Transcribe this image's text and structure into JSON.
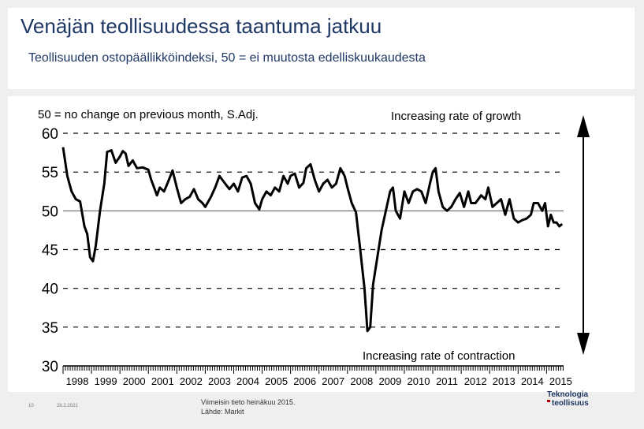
{
  "header": {
    "title": "Venäjän teollisuudessa taantuma jatkuu",
    "subtitle": "Teollisuuden ostopäällikköindeksi, 50 = ei muutosta edelliskuukaudesta"
  },
  "footer": {
    "page_number": "10",
    "date": "28.2.2021",
    "source_line1": "Viimeisin tieto heinäkuu 2015.",
    "source_line2": "Lähde: Markit"
  },
  "logo": {
    "line1": "Teknologia",
    "line2": "teollisuus"
  },
  "colors": {
    "accent": "#1f3864",
    "line": "#000000",
    "logo_red": "#c00000"
  },
  "chart_data": {
    "type": "line",
    "note": "50 = no change on previous month, S.Adj.",
    "top_annotation": "Increasing rate of growth",
    "bottom_annotation": "Increasing rate of contraction",
    "yticks": [
      "60",
      "55",
      "50",
      "45",
      "40",
      "35",
      "30"
    ],
    "ylim": [
      30,
      60
    ],
    "xticks": [
      "1998",
      "1999",
      "2000",
      "2001",
      "2002",
      "2003",
      "2004",
      "2005",
      "2006",
      "2007",
      "2008",
      "2009",
      "2010",
      "2011",
      "2012",
      "2013",
      "2014",
      "2015"
    ],
    "xlim": [
      1998,
      2015.6
    ],
    "grid": "dashed horizontal",
    "series": [
      {
        "values": [
          [
            1998.0,
            58.2
          ],
          [
            1998.15,
            54.5
          ],
          [
            1998.3,
            52.5
          ],
          [
            1998.45,
            51.5
          ],
          [
            1998.6,
            51.2
          ],
          [
            1998.75,
            48.0
          ],
          [
            1998.85,
            47.0
          ],
          [
            1998.95,
            44.0
          ],
          [
            1999.05,
            43.5
          ],
          [
            1999.15,
            45.5
          ],
          [
            1999.3,
            50.0
          ],
          [
            1999.45,
            53.5
          ],
          [
            1999.55,
            57.6
          ],
          [
            1999.7,
            57.8
          ],
          [
            1999.85,
            56.2
          ],
          [
            2000.0,
            57.0
          ],
          [
            2000.1,
            57.7
          ],
          [
            2000.2,
            57.4
          ],
          [
            2000.3,
            55.8
          ],
          [
            2000.45,
            56.5
          ],
          [
            2000.6,
            55.5
          ],
          [
            2000.8,
            55.6
          ],
          [
            2001.0,
            55.3
          ],
          [
            2001.1,
            54.0
          ],
          [
            2001.2,
            53.0
          ],
          [
            2001.3,
            52.0
          ],
          [
            2001.4,
            53.0
          ],
          [
            2001.55,
            52.5
          ],
          [
            2001.7,
            53.8
          ],
          [
            2001.85,
            55.2
          ],
          [
            2002.0,
            53.0
          ],
          [
            2002.15,
            51.0
          ],
          [
            2002.3,
            51.5
          ],
          [
            2002.45,
            51.8
          ],
          [
            2002.6,
            52.8
          ],
          [
            2002.75,
            51.5
          ],
          [
            2002.9,
            51.0
          ],
          [
            2003.0,
            50.5
          ],
          [
            2003.2,
            51.8
          ],
          [
            2003.35,
            53.0
          ],
          [
            2003.5,
            54.5
          ],
          [
            2003.7,
            53.5
          ],
          [
            2003.85,
            52.8
          ],
          [
            2004.0,
            53.5
          ],
          [
            2004.15,
            52.5
          ],
          [
            2004.3,
            54.3
          ],
          [
            2004.45,
            54.5
          ],
          [
            2004.6,
            53.5
          ],
          [
            2004.75,
            51.0
          ],
          [
            2004.9,
            50.2
          ],
          [
            2005.0,
            51.5
          ],
          [
            2005.15,
            52.5
          ],
          [
            2005.3,
            52.0
          ],
          [
            2005.45,
            53.0
          ],
          [
            2005.6,
            52.5
          ],
          [
            2005.75,
            54.5
          ],
          [
            2005.9,
            53.5
          ],
          [
            2006.0,
            54.5
          ],
          [
            2006.15,
            54.8
          ],
          [
            2006.3,
            53.0
          ],
          [
            2006.45,
            53.6
          ],
          [
            2006.55,
            55.5
          ],
          [
            2006.7,
            56.0
          ],
          [
            2006.85,
            54.0
          ],
          [
            2007.0,
            52.5
          ],
          [
            2007.15,
            53.5
          ],
          [
            2007.3,
            54.0
          ],
          [
            2007.45,
            53.0
          ],
          [
            2007.6,
            53.5
          ],
          [
            2007.75,
            55.5
          ],
          [
            2007.9,
            54.5
          ],
          [
            2008.0,
            53.0
          ],
          [
            2008.15,
            51.0
          ],
          [
            2008.3,
            49.8
          ],
          [
            2008.45,
            45.0
          ],
          [
            2008.6,
            40.0
          ],
          [
            2008.7,
            34.5
          ],
          [
            2008.8,
            35.0
          ],
          [
            2008.9,
            40.5
          ],
          [
            2009.05,
            44.0
          ],
          [
            2009.2,
            47.5
          ],
          [
            2009.35,
            50.0
          ],
          [
            2009.5,
            52.5
          ],
          [
            2009.6,
            53.0
          ],
          [
            2009.7,
            50.0
          ],
          [
            2009.85,
            49.0
          ],
          [
            2010.0,
            52.5
          ],
          [
            2010.15,
            51.0
          ],
          [
            2010.3,
            52.5
          ],
          [
            2010.45,
            52.8
          ],
          [
            2010.6,
            52.5
          ],
          [
            2010.75,
            51.0
          ],
          [
            2010.9,
            53.5
          ],
          [
            2011.0,
            55.0
          ],
          [
            2011.1,
            55.5
          ],
          [
            2011.2,
            52.5
          ],
          [
            2011.35,
            50.5
          ],
          [
            2011.5,
            50.0
          ],
          [
            2011.65,
            50.5
          ],
          [
            2011.8,
            51.5
          ],
          [
            2011.95,
            52.3
          ],
          [
            2012.1,
            50.5
          ],
          [
            2012.25,
            52.5
          ],
          [
            2012.35,
            51.0
          ],
          [
            2012.5,
            51.0
          ],
          [
            2012.7,
            52.0
          ],
          [
            2012.85,
            51.5
          ],
          [
            2012.95,
            53.0
          ],
          [
            2013.1,
            50.5
          ],
          [
            2013.25,
            51.0
          ],
          [
            2013.4,
            51.5
          ],
          [
            2013.55,
            49.5
          ],
          [
            2013.7,
            51.5
          ],
          [
            2013.85,
            49.0
          ],
          [
            2014.0,
            48.5
          ],
          [
            2014.15,
            48.8
          ],
          [
            2014.3,
            49.0
          ],
          [
            2014.45,
            49.5
          ],
          [
            2014.55,
            51.0
          ],
          [
            2014.7,
            51.0
          ],
          [
            2014.85,
            50.0
          ],
          [
            2014.95,
            51.0
          ],
          [
            2015.05,
            48.0
          ],
          [
            2015.15,
            49.5
          ],
          [
            2015.25,
            48.5
          ],
          [
            2015.35,
            48.5
          ],
          [
            2015.45,
            48.0
          ],
          [
            2015.55,
            48.3
          ]
        ]
      }
    ]
  }
}
